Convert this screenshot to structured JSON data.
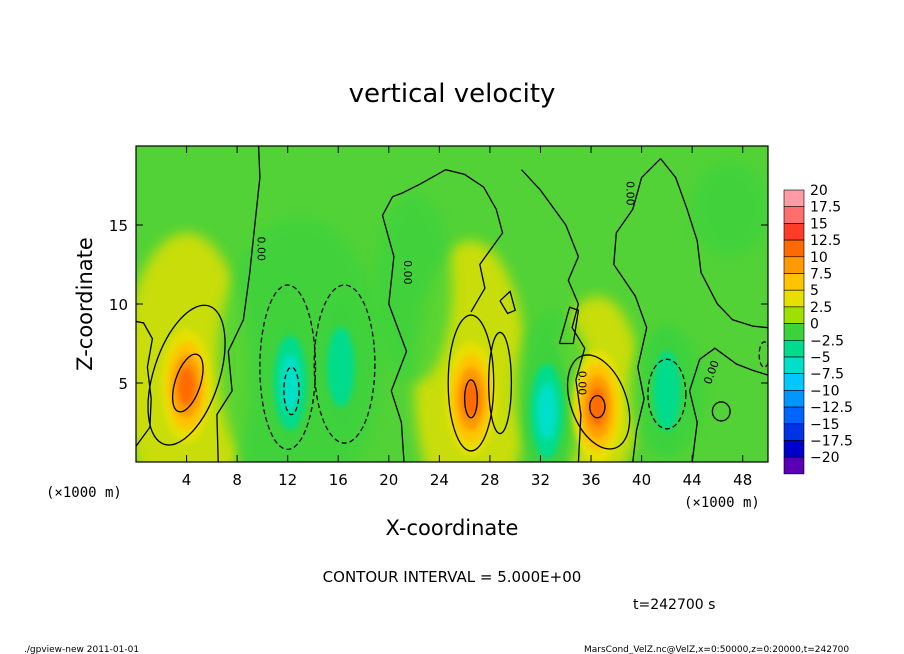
{
  "chart_data": {
    "type": "heatmap",
    "title": "vertical velocity",
    "xlabel": "X-coordinate",
    "ylabel": "Z-coordinate",
    "x_unit_left": "(×1000 m)",
    "x_unit_right": "(×1000 m)",
    "xlim": [
      0,
      50
    ],
    "ylim": [
      0,
      20
    ],
    "x_ticks": [
      4,
      8,
      12,
      16,
      20,
      24,
      28,
      32,
      36,
      40,
      44,
      48
    ],
    "y_ticks": [
      5,
      10,
      15
    ],
    "contour_interval_text": "CONTOUR INTERVAL = 5.000E+00",
    "contour_labels": [
      "0.00",
      "0.00",
      "0.00",
      "0.00",
      "0.00"
    ],
    "time_text": "t=242700 s",
    "colorbar": {
      "labels": [
        "20",
        "17.5",
        "15",
        "12.5",
        "10",
        "7.5",
        "5",
        "2.5",
        "0",
        "−2.5",
        "−5",
        "−7.5",
        "−10",
        "−12.5",
        "−15",
        "−17.5",
        "−20"
      ],
      "colors": [
        "#ff9aa6",
        "#ff6e6e",
        "#ff3c28",
        "#ff6a00",
        "#ff9a00",
        "#ffc400",
        "#e6e000",
        "#9ee000",
        "#3cd23c",
        "#00dc8c",
        "#00e0c8",
        "#00c8ff",
        "#0096ff",
        "#0064ff",
        "#0032e6",
        "#0000c8",
        "#5a00b4"
      ]
    },
    "features": [
      {
        "kind": "updraft",
        "x": 4.0,
        "z": 4.8,
        "w_max": 12
      },
      {
        "kind": "downdraft",
        "x": 12.2,
        "z": 5.0,
        "w_min": -9
      },
      {
        "kind": "downdraft",
        "x": 16.2,
        "z": 6.0,
        "w_min": -7
      },
      {
        "kind": "updraft",
        "x": 26.5,
        "z": 4.0,
        "w_max": 11
      },
      {
        "kind": "downdraft",
        "x": 32.5,
        "z": 3.2,
        "w_min": -8
      },
      {
        "kind": "updraft",
        "x": 36.5,
        "z": 3.5,
        "w_max": 11
      },
      {
        "kind": "downdraft",
        "x": 42.0,
        "z": 4.5,
        "w_min": -6
      }
    ]
  },
  "footer": {
    "left": "./gpview-new   2011-01-01",
    "right": "MarsCond_VelZ.nc@VelZ,x=0:50000,z=0:20000,t=242700"
  }
}
